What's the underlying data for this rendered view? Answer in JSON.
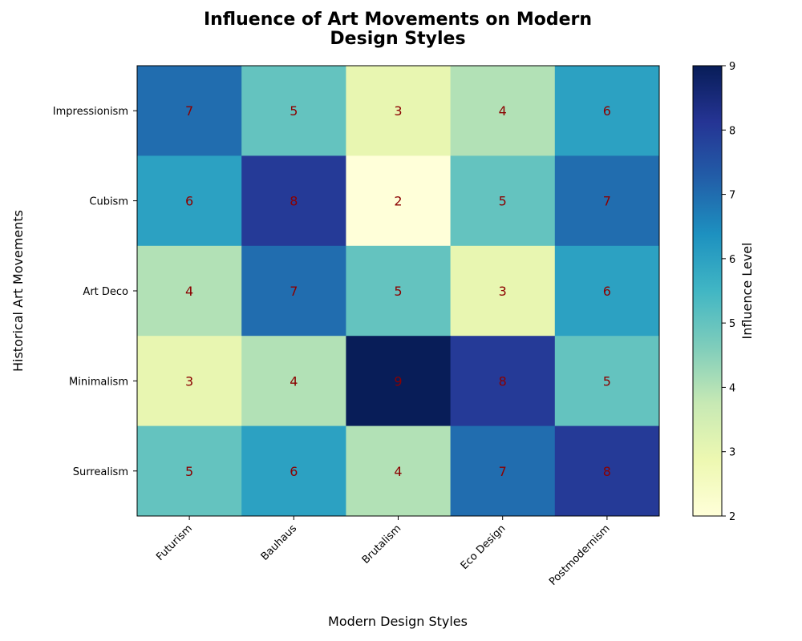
{
  "chart_data": {
    "type": "heatmap",
    "title_lines": [
      "Influence of Art Movements on Modern",
      "Design Styles"
    ],
    "xlabel": "Modern Design Styles",
    "ylabel": "Historical Art Movements",
    "x_categories": [
      "Futurism",
      "Bauhaus",
      "Brutalism",
      "Eco Design",
      "Postmodernism"
    ],
    "y_categories": [
      "Impressionism",
      "Cubism",
      "Art Deco",
      "Minimalism",
      "Surrealism"
    ],
    "values": [
      [
        7,
        5,
        3,
        4,
        6
      ],
      [
        6,
        8,
        2,
        5,
        7
      ],
      [
        4,
        7,
        5,
        3,
        6
      ],
      [
        3,
        4,
        9,
        8,
        5
      ],
      [
        5,
        6,
        4,
        7,
        8
      ]
    ],
    "colorbar": {
      "label": "Influence Level",
      "range": [
        2,
        9
      ],
      "ticks": [
        "2",
        "3",
        "4",
        "5",
        "6",
        "7",
        "8",
        "9"
      ]
    },
    "colormap": "YlGnBu",
    "colormap_stops": [
      "#ffffd9",
      "#edf8b1",
      "#c7e9b4",
      "#7fcdbb",
      "#41b6c4",
      "#1d91c0",
      "#225ea8",
      "#253494",
      "#081d58"
    ],
    "annotation_color": "#8b0000",
    "grid": false
  }
}
